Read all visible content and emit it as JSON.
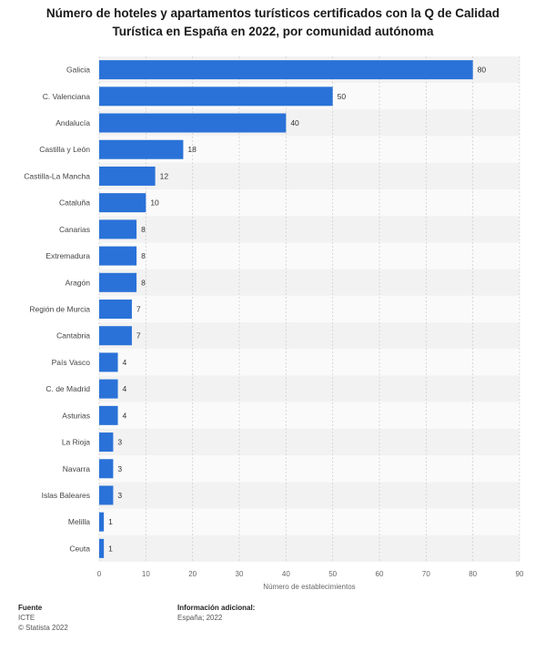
{
  "title_line1": "Número de hoteles y apartamentos turísticos certificados con la Q de Calidad",
  "title_line2": "Turística en España en 2022, por comunidad autónoma",
  "chart_data": {
    "type": "bar",
    "orientation": "horizontal",
    "categories": [
      "Galicia",
      "C. Valenciana",
      "Andalucía",
      "Castilla y León",
      "Castilla-La Mancha",
      "Cataluña",
      "Canarias",
      "Extremadura",
      "Aragón",
      "Región de Murcia",
      "Cantabria",
      "País Vasco",
      "C. de Madrid",
      "Asturias",
      "La Rioja",
      "Navarra",
      "Islas Baleares",
      "Melilla",
      "Ceuta"
    ],
    "values": [
      80,
      50,
      40,
      18,
      12,
      10,
      8,
      8,
      8,
      7,
      7,
      4,
      4,
      4,
      3,
      3,
      3,
      1,
      1
    ],
    "xlabel": "Número de establecimientos",
    "xlim": [
      0,
      90
    ],
    "xticks": [
      0,
      10,
      20,
      30,
      40,
      50,
      60,
      70,
      80,
      90
    ],
    "grid": true,
    "bar_color": "#2a72d8"
  },
  "footer": {
    "source_heading": "Fuente",
    "source_line1": "ICTE",
    "source_line2": "© Statista 2022",
    "info_heading": "Información adicional:",
    "info_line1": "España; 2022"
  }
}
